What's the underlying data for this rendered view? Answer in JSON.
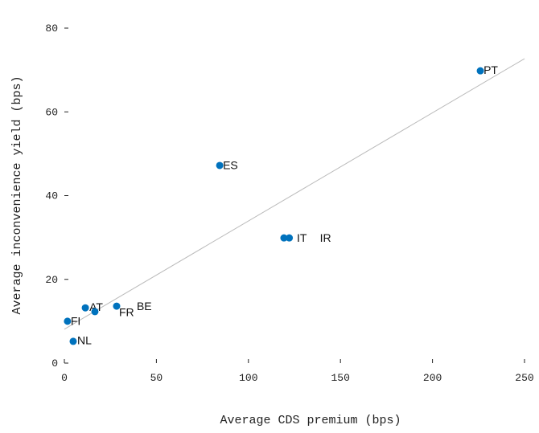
{
  "chart_data": {
    "type": "scatter",
    "xlabel": "Average CDS premium (bps)",
    "ylabel": "Average inconvenience yield (bps)",
    "labels": [
      "PT",
      "ES",
      "IT",
      "IR",
      "BE",
      "AT",
      "FR",
      "FI",
      "NL"
    ],
    "x": [
      226,
      84.4,
      119.3,
      122.2,
      28.4,
      11.4,
      16.6,
      1.7,
      4.8
    ],
    "y": [
      69.8,
      47.2,
      29.9,
      29.9,
      13.6,
      13.2,
      12.3,
      10.0,
      5.2
    ],
    "color": "#0072bd",
    "trend_line": {
      "x": [
        0,
        250
      ],
      "y": [
        8.1,
        72.7
      ],
      "color": "#bbbbbb"
    },
    "xlim": [
      0,
      250
    ],
    "xticks": [
      0,
      50,
      100,
      150,
      200,
      250
    ],
    "ylim": [
      0,
      80
    ],
    "yticks": [
      0,
      20,
      40,
      60,
      80
    ]
  }
}
